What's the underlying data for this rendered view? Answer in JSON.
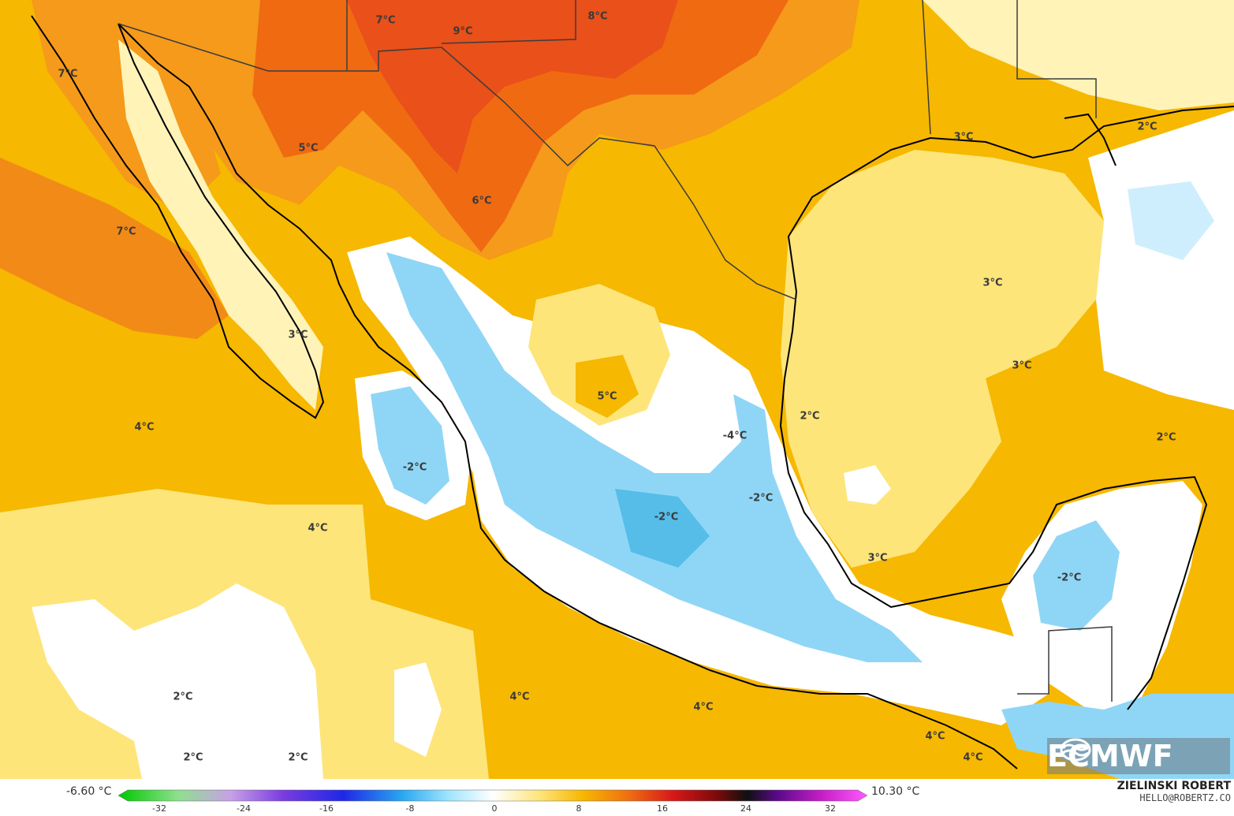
{
  "map": {
    "colors": {
      "base": "#f6b800",
      "light": "#fde57a",
      "pale": "#fff3b8",
      "orange": "#f59a1a",
      "deep_orange": "#f06a12",
      "red_orange": "#e9501a",
      "neutral": "#ffffff",
      "cold_light": "#cfeefd",
      "cold": "#8fd6f6",
      "cold_strong": "#56bde8",
      "coast": "#000000",
      "border": "#3c3c3c"
    },
    "labels": [
      {
        "id": "lbl-7c-nw",
        "text": "7°C"
      },
      {
        "id": "lbl-7c-n",
        "text": "7°C"
      },
      {
        "id": "lbl-9c",
        "text": "9°C"
      },
      {
        "id": "lbl-8c",
        "text": "8°C"
      },
      {
        "id": "lbl-5c-sonora",
        "text": "5°C"
      },
      {
        "id": "lbl-7c-baja",
        "text": "7°C"
      },
      {
        "id": "lbl-6c",
        "text": "6°C"
      },
      {
        "id": "lbl-3c-bcs",
        "text": "3°C"
      },
      {
        "id": "lbl-4c-pacific",
        "text": "4°C"
      },
      {
        "id": "lbl-m2c-pacific",
        "text": "-2°C"
      },
      {
        "id": "lbl-5c-central",
        "text": "5°C"
      },
      {
        "id": "lbl-m4c",
        "text": "-4°C"
      },
      {
        "id": "lbl-m2c-center",
        "text": "-2°C"
      },
      {
        "id": "lbl-m2c-east",
        "text": "-2°C"
      },
      {
        "id": "lbl-4c-mid",
        "text": "4°C"
      },
      {
        "id": "lbl-3c-gulf-n",
        "text": "3°C"
      },
      {
        "id": "lbl-2c-ne",
        "text": "2°C"
      },
      {
        "id": "lbl-3c-gulf",
        "text": "3°C"
      },
      {
        "id": "lbl-3c-gulf-c",
        "text": "3°C"
      },
      {
        "id": "lbl-2c-gulf-w",
        "text": "2°C"
      },
      {
        "id": "lbl-2c-cuba",
        "text": "2°C"
      },
      {
        "id": "lbl-m2c-yucatan",
        "text": "-2°C"
      },
      {
        "id": "lbl-3c-gulf-s",
        "text": "3°C"
      },
      {
        "id": "lbl-2c-sw1",
        "text": "2°C"
      },
      {
        "id": "lbl-2c-sw2",
        "text": "2°C"
      },
      {
        "id": "lbl-2c-sw3",
        "text": "2°C"
      },
      {
        "id": "lbl-4c-s1",
        "text": "4°C"
      },
      {
        "id": "lbl-4c-s2",
        "text": "4°C"
      },
      {
        "id": "lbl-4c-s3",
        "text": "4°C"
      },
      {
        "id": "lbl-4c-s4",
        "text": "4°C"
      }
    ]
  },
  "logo": {
    "text": "ECMWF"
  },
  "scale": {
    "min_label": "-6.60 °C",
    "max_label": "10.30 °C",
    "ticks": [
      "-32",
      "-24",
      "-16",
      "-8",
      "0",
      "8",
      "16",
      "24",
      "32"
    ],
    "gradient": [
      "#00c800",
      "#8ee08e",
      "#c8a0e8",
      "#7a3ce0",
      "#1e28e6",
      "#2aa8f0",
      "#9ee4ff",
      "#ffffff",
      "#ffe680",
      "#f6b800",
      "#f07010",
      "#d81818",
      "#7a0a0a",
      "#101010",
      "#5a0a8a",
      "#c81ec8",
      "#ff5aff"
    ]
  },
  "credit": {
    "name": "ZIELINSKI ROBERT",
    "email": "HELLO@ROBERTZ.CO"
  }
}
